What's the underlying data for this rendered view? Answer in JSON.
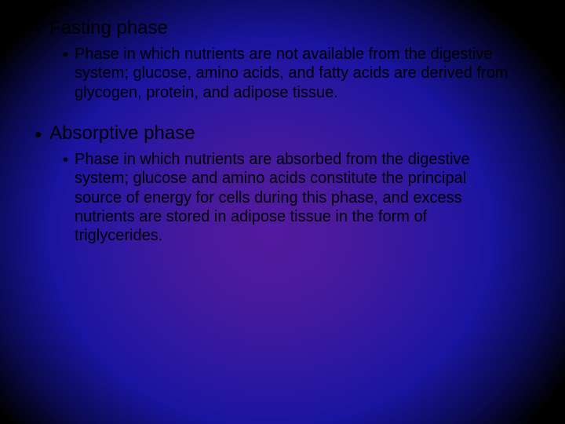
{
  "slide": {
    "items": [
      {
        "heading": "Fasting phase",
        "description": "Phase in which nutrients are not available from the digestive system; glucose, amino acids, and fatty acids are derived from glycogen, protein, and adipose tissue."
      },
      {
        "heading": "Absorptive phase",
        "description": "Phase in which nutrients are absorbed from the digestive system; glucose and amino acids constitute the principal source of energy for cells during this phase, and excess nutrients are stored in adipose tissue in the form of triglycerides."
      }
    ]
  },
  "style": {
    "background_gradient_center": "#531a9e",
    "background_gradient_mid": "#3018a0",
    "background_gradient_edge": "#000000",
    "text_color": "#000000",
    "main_fontsize": 24,
    "sub_fontsize": 20,
    "font_family": "Arial"
  }
}
